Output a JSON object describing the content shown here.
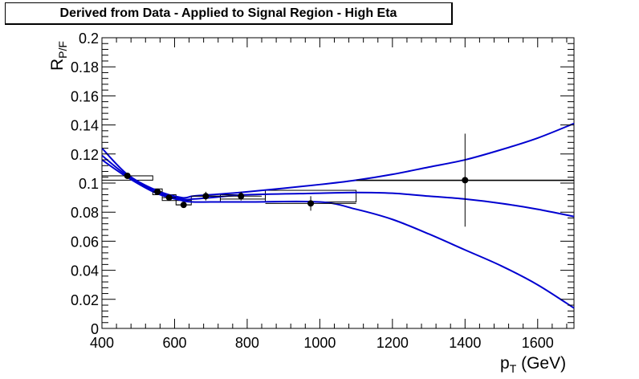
{
  "chart_data": {
    "type": "scatter",
    "title": "Derived from Data - Applied to Signal Region - High Eta",
    "xlabel": "p_T (GeV)",
    "ylabel": "R_P/F",
    "xlim": [
      400,
      1700
    ],
    "ylim": [
      0,
      0.2
    ],
    "x_ticks": [
      "400",
      "600",
      "800",
      "1000",
      "1200",
      "1400",
      "1600"
    ],
    "y_ticks": [
      "0",
      "0.02",
      "0.04",
      "0.06",
      "0.08",
      "0.1",
      "0.12",
      "0.14",
      "0.16",
      "0.18",
      "0.2"
    ],
    "grid": false,
    "points": [
      {
        "x": 470,
        "y": 0.105,
        "xerr": [
          70,
          70
        ],
        "yerr": 0.002
      },
      {
        "x": 553,
        "y": 0.094,
        "xerr": [
          13,
          13
        ],
        "yerr": 0.002
      },
      {
        "x": 585,
        "y": 0.09,
        "xerr": [
          19,
          19
        ],
        "yerr": 0.002
      },
      {
        "x": 625,
        "y": 0.085,
        "xerr": [
          21,
          21
        ],
        "yerr": 0.002
      },
      {
        "x": 686,
        "y": 0.091,
        "xerr": [
          40,
          40
        ],
        "yerr": 0.003
      },
      {
        "x": 783,
        "y": 0.091,
        "xerr": [
          57,
          57
        ],
        "yerr": 0.003
      },
      {
        "x": 975,
        "y": 0.086,
        "xerr": [
          125,
          125
        ],
        "yerr": 0.005
      },
      {
        "x": 1400,
        "y": 0.102,
        "xerr": [
          300,
          300
        ],
        "yerr": 0.032
      }
    ],
    "boxes": [
      {
        "x0": 400,
        "x1": 540,
        "y0": 0.102,
        "y1": 0.105
      },
      {
        "x0": 540,
        "x1": 566,
        "y0": 0.092,
        "y1": 0.096
      },
      {
        "x0": 566,
        "x1": 604,
        "y0": 0.088,
        "y1": 0.092
      },
      {
        "x0": 604,
        "x1": 646,
        "y0": 0.085,
        "y1": 0.088
      },
      {
        "x0": 646,
        "x1": 726,
        "y0": 0.087,
        "y1": 0.091
      },
      {
        "x0": 726,
        "x1": 850,
        "y0": 0.089,
        "y1": 0.092
      },
      {
        "x0": 850,
        "x1": 1100,
        "y0": 0.087,
        "y1": 0.095
      },
      {
        "x0": 1100,
        "x1": 1700,
        "y0": 0.102,
        "y1": 0.102
      }
    ],
    "curves": [
      {
        "x": [
          400,
          470,
          550,
          620,
          650,
          700,
          800,
          1000,
          1100,
          1200,
          1300,
          1400,
          1500,
          1600,
          1700
        ],
        "y": [
          0.124,
          0.106,
          0.095,
          0.09,
          0.091,
          0.092,
          0.094,
          0.099,
          0.102,
          0.106,
          0.111,
          0.116,
          0.123,
          0.131,
          0.141
        ]
      },
      {
        "x": [
          400,
          470,
          550,
          620,
          650,
          700,
          800,
          1000,
          1100,
          1200,
          1300,
          1400,
          1500,
          1600,
          1700
        ],
        "y": [
          0.119,
          0.105,
          0.094,
          0.089,
          0.089,
          0.09,
          0.092,
          0.093,
          0.0935,
          0.093,
          0.091,
          0.089,
          0.086,
          0.082,
          0.077
        ]
      },
      {
        "x": [
          400,
          470,
          550,
          620,
          650,
          700,
          800,
          1000,
          1100,
          1200,
          1300,
          1400,
          1500,
          1600,
          1700
        ],
        "y": [
          0.116,
          0.104,
          0.093,
          0.088,
          0.087,
          0.087,
          0.087,
          0.087,
          0.082,
          0.075,
          0.065,
          0.054,
          0.043,
          0.03,
          0.014
        ]
      }
    ],
    "curve_color": "#0000d0",
    "marker_color": "#000000"
  }
}
